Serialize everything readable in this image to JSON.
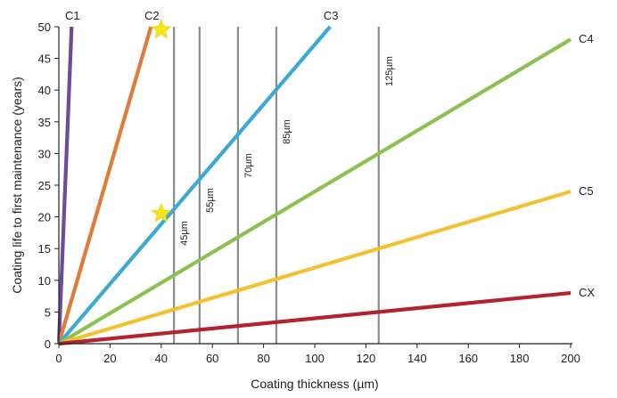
{
  "chart_data": {
    "type": "line",
    "title": "",
    "xlabel": "Coating thickness (µm)",
    "ylabel": "Coating life to first maintenance (years)",
    "xlim": [
      0,
      200
    ],
    "ylim": [
      0,
      50
    ],
    "x_ticks": [
      "0",
      "20",
      "40",
      "60",
      "80",
      "100",
      "120",
      "140",
      "160",
      "180",
      "200"
    ],
    "y_ticks": [
      "0",
      "5",
      "10",
      "15",
      "20",
      "25",
      "30",
      "35",
      "40",
      "45",
      "50"
    ],
    "grid": false,
    "series": [
      {
        "name": "C1",
        "color": "#6b4c9a",
        "x": [
          0,
          5
        ],
        "y": [
          0,
          50
        ]
      },
      {
        "name": "C2",
        "color": "#e07b39",
        "x": [
          0,
          36
        ],
        "y": [
          0,
          50
        ]
      },
      {
        "name": "C3",
        "color": "#3aa9d6",
        "x": [
          0,
          106
        ],
        "y": [
          0,
          50
        ]
      },
      {
        "name": "C4",
        "color": "#8cc152",
        "x": [
          0,
          200
        ],
        "y": [
          0,
          48
        ]
      },
      {
        "name": "C5",
        "color": "#f3c131",
        "x": [
          0,
          200
        ],
        "y": [
          0,
          24
        ]
      },
      {
        "name": "CX",
        "color": "#b22230",
        "x": [
          0,
          200
        ],
        "y": [
          0,
          8
        ]
      }
    ],
    "reference_lines": [
      {
        "x": 45,
        "label": "45µm"
      },
      {
        "x": 55,
        "label": "55µm"
      },
      {
        "x": 70,
        "label": "70µm"
      },
      {
        "x": 85,
        "label": "85µm"
      },
      {
        "x": 125,
        "label": "125µm"
      }
    ],
    "markers": [
      {
        "shape": "star",
        "color": "#f5e61a",
        "x": 40,
        "y": 49.5
      },
      {
        "shape": "star",
        "color": "#f5e61a",
        "x": 40,
        "y": 20.5
      }
    ]
  }
}
